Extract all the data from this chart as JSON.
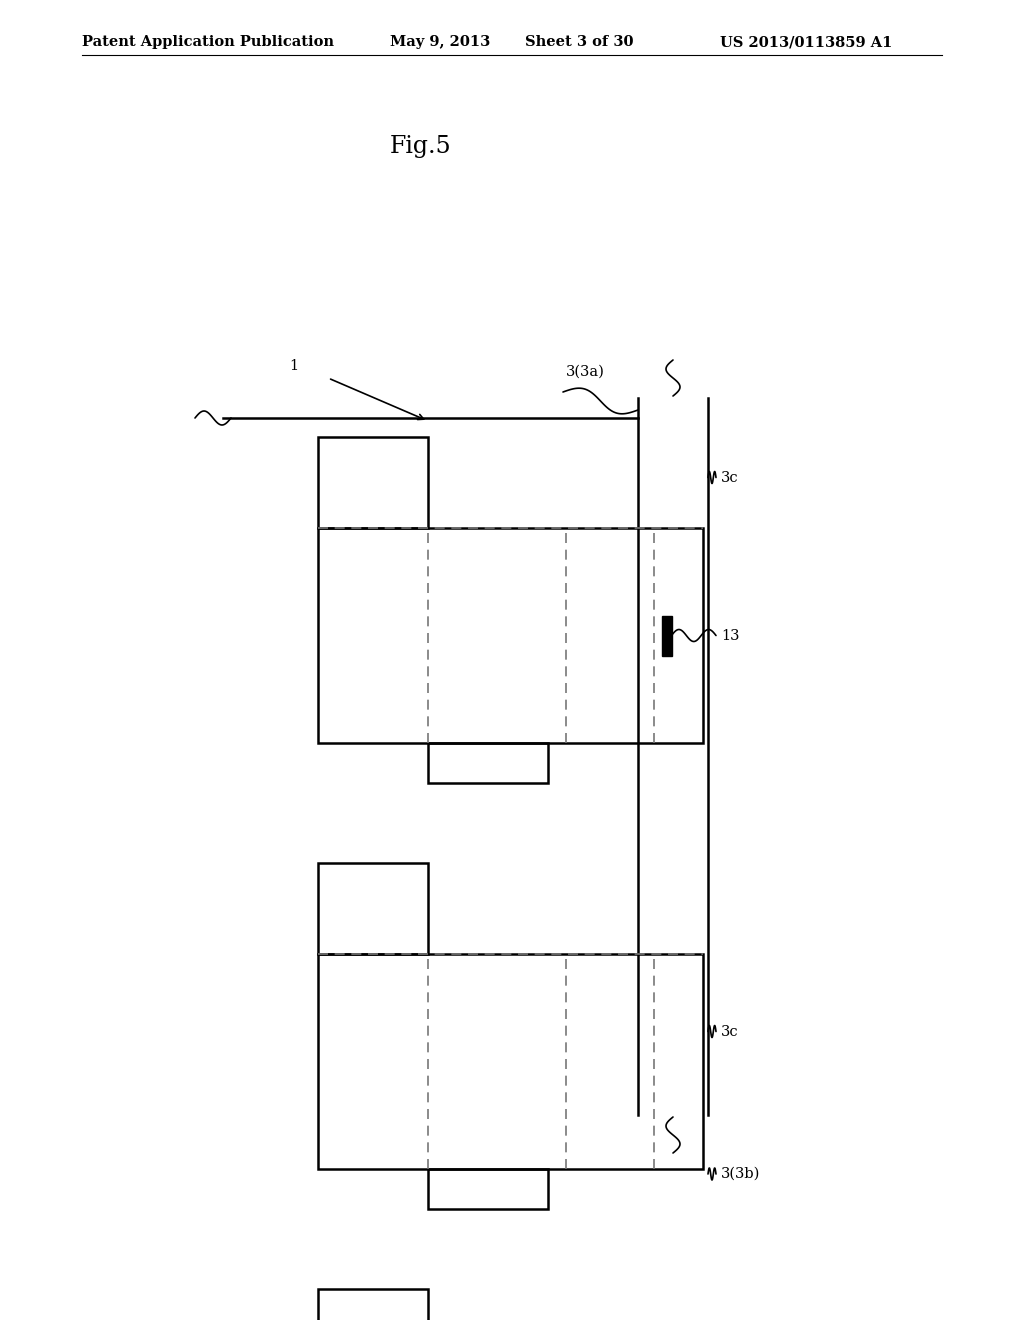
{
  "background_color": "#ffffff",
  "header_text": "Patent Application Publication",
  "header_date": "May 9, 2013",
  "header_sheet": "Sheet 3 of 30",
  "header_patent": "US 2013/0113859 A1",
  "fig_title": "Fig.5",
  "line_color": "#000000",
  "dashed_color": "#777777",
  "label_fontsize": 10.5,
  "header_fontsize": 10.5,
  "title_fontsize": 17
}
